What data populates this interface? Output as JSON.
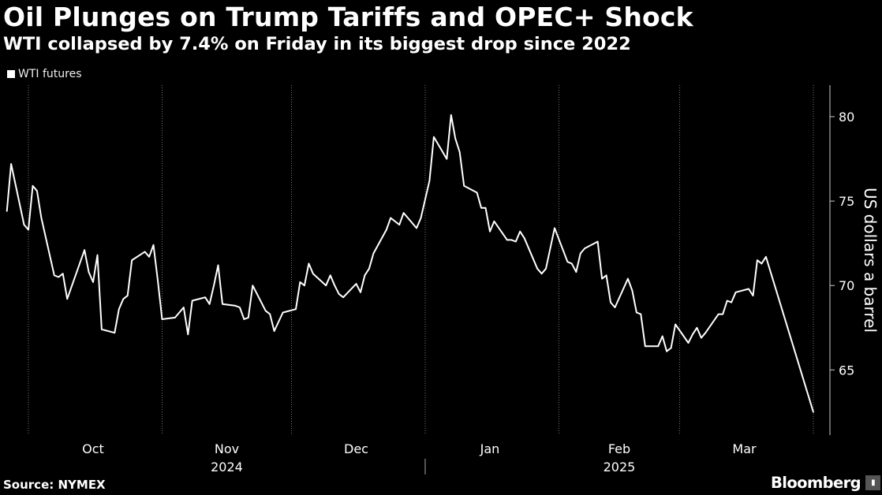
{
  "header": {
    "title": "Oil Plunges on Trump Tariffs and OPEC+ Shock",
    "subtitle": "WTI collapsed by 7.4% on Friday in its biggest drop since 2022"
  },
  "footer": {
    "source": "Source: NYMEX",
    "brand": "Bloomberg"
  },
  "colors": {
    "background": "#000000",
    "line": "#ffffff",
    "grid": "#888888"
  },
  "chart_data": {
    "type": "line",
    "title": "Oil Plunges on Trump Tariffs and OPEC+ Shock",
    "subtitle": "WTI collapsed by 7.4% on Friday in its biggest drop since 2022",
    "ylabel": "US dollars a barrel",
    "xlabel": "",
    "ylim": [
      61,
      82
    ],
    "yticks": [
      65,
      70,
      75,
      80
    ],
    "grid": "vertical dotted at month starts",
    "legend": "top-left",
    "months": [
      "Oct",
      "Nov",
      "Dec",
      "Jan",
      "Feb",
      "Mar"
    ],
    "years": [
      "2024",
      "2025"
    ],
    "series": [
      {
        "name": "WTI futures",
        "points": [
          [
            "2024-09-26",
            74.4
          ],
          [
            "2024-09-27",
            77.2
          ],
          [
            "2024-09-30",
            73.6
          ],
          [
            "2024-10-01",
            73.3
          ],
          [
            "2024-10-02",
            75.9
          ],
          [
            "2024-10-03",
            75.6
          ],
          [
            "2024-10-04",
            74.0
          ],
          [
            "2024-10-07",
            70.6
          ],
          [
            "2024-10-08",
            70.5
          ],
          [
            "2024-10-09",
            70.7
          ],
          [
            "2024-10-10",
            69.2
          ],
          [
            "2024-10-14",
            72.1
          ],
          [
            "2024-10-15",
            70.8
          ],
          [
            "2024-10-16",
            70.2
          ],
          [
            "2024-10-17",
            71.8
          ],
          [
            "2024-10-18",
            67.4
          ],
          [
            "2024-10-21",
            67.2
          ],
          [
            "2024-10-22",
            68.6
          ],
          [
            "2024-10-23",
            69.2
          ],
          [
            "2024-10-24",
            69.4
          ],
          [
            "2024-10-25",
            71.5
          ],
          [
            "2024-10-28",
            72.0
          ],
          [
            "2024-10-29",
            71.7
          ],
          [
            "2024-10-30",
            72.4
          ],
          [
            "2024-10-31",
            70.3
          ],
          [
            "2024-11-01",
            68.0
          ],
          [
            "2024-11-04",
            68.1
          ],
          [
            "2024-11-05",
            68.4
          ],
          [
            "2024-11-06",
            68.7
          ],
          [
            "2024-11-07",
            67.1
          ],
          [
            "2024-11-08",
            69.1
          ],
          [
            "2024-11-11",
            69.3
          ],
          [
            "2024-11-12",
            68.9
          ],
          [
            "2024-11-13",
            70.0
          ],
          [
            "2024-11-14",
            71.2
          ],
          [
            "2024-11-15",
            68.9
          ],
          [
            "2024-11-18",
            68.8
          ],
          [
            "2024-11-19",
            68.7
          ],
          [
            "2024-11-20",
            68.0
          ],
          [
            "2024-11-21",
            68.1
          ],
          [
            "2024-11-22",
            70.0
          ],
          [
            "2024-11-25",
            68.5
          ],
          [
            "2024-11-26",
            68.3
          ],
          [
            "2024-11-27",
            67.3
          ],
          [
            "2024-11-29",
            68.4
          ],
          [
            "2024-12-02",
            68.6
          ],
          [
            "2024-12-03",
            70.2
          ],
          [
            "2024-12-04",
            70.0
          ],
          [
            "2024-12-05",
            71.3
          ],
          [
            "2024-12-06",
            70.7
          ],
          [
            "2024-12-09",
            70.0
          ],
          [
            "2024-12-10",
            70.6
          ],
          [
            "2024-12-11",
            70.0
          ],
          [
            "2024-12-12",
            69.5
          ],
          [
            "2024-12-13",
            69.3
          ],
          [
            "2024-12-16",
            70.1
          ],
          [
            "2024-12-17",
            69.6
          ],
          [
            "2024-12-18",
            70.6
          ],
          [
            "2024-12-19",
            71.0
          ],
          [
            "2024-12-20",
            71.9
          ],
          [
            "2024-12-23",
            73.3
          ],
          [
            "2024-12-24",
            74.0
          ],
          [
            "2024-12-26",
            73.6
          ],
          [
            "2024-12-27",
            74.3
          ],
          [
            "2024-12-30",
            73.4
          ],
          [
            "2024-12-31",
            74.0
          ],
          [
            "2025-01-02",
            76.2
          ],
          [
            "2025-01-03",
            78.8
          ],
          [
            "2025-01-06",
            77.5
          ],
          [
            "2025-01-07",
            80.1
          ],
          [
            "2025-01-08",
            78.7
          ],
          [
            "2025-01-09",
            77.9
          ],
          [
            "2025-01-10",
            75.9
          ],
          [
            "2025-01-13",
            75.5
          ],
          [
            "2025-01-14",
            74.6
          ],
          [
            "2025-01-15",
            74.6
          ],
          [
            "2025-01-16",
            73.2
          ],
          [
            "2025-01-17",
            73.8
          ],
          [
            "2025-01-20",
            72.7
          ],
          [
            "2025-01-21",
            72.7
          ],
          [
            "2025-01-22",
            72.6
          ],
          [
            "2025-01-23",
            73.2
          ],
          [
            "2025-01-24",
            72.8
          ],
          [
            "2025-01-27",
            71.0
          ],
          [
            "2025-01-28",
            70.7
          ],
          [
            "2025-01-29",
            71.0
          ],
          [
            "2025-01-30",
            72.2
          ],
          [
            "2025-01-31",
            73.4
          ],
          [
            "2025-02-03",
            71.4
          ],
          [
            "2025-02-04",
            71.3
          ],
          [
            "2025-02-05",
            70.8
          ],
          [
            "2025-02-06",
            71.9
          ],
          [
            "2025-02-07",
            72.2
          ],
          [
            "2025-02-10",
            72.6
          ],
          [
            "2025-02-11",
            70.4
          ],
          [
            "2025-02-12",
            70.6
          ],
          [
            "2025-02-13",
            69.0
          ],
          [
            "2025-02-14",
            68.7
          ],
          [
            "2025-02-17",
            70.4
          ],
          [
            "2025-02-18",
            69.7
          ],
          [
            "2025-02-19",
            68.4
          ],
          [
            "2025-02-20",
            68.3
          ],
          [
            "2025-02-21",
            66.4
          ],
          [
            "2025-02-24",
            66.4
          ],
          [
            "2025-02-25",
            67.0
          ],
          [
            "2025-02-26",
            66.1
          ],
          [
            "2025-02-27",
            66.3
          ],
          [
            "2025-02-28",
            67.7
          ],
          [
            "2025-03-03",
            66.6
          ],
          [
            "2025-03-04",
            67.1
          ],
          [
            "2025-03-05",
            67.5
          ],
          [
            "2025-03-06",
            66.9
          ],
          [
            "2025-03-07",
            67.2
          ],
          [
            "2025-03-10",
            68.3
          ],
          [
            "2025-03-11",
            68.3
          ],
          [
            "2025-03-12",
            69.1
          ],
          [
            "2025-03-13",
            69.0
          ],
          [
            "2025-03-14",
            69.6
          ],
          [
            "2025-03-17",
            69.8
          ],
          [
            "2025-03-18",
            69.4
          ],
          [
            "2025-03-19",
            71.5
          ],
          [
            "2025-03-20",
            71.3
          ],
          [
            "2025-03-21",
            71.7
          ],
          [
            "2025-04-01",
            62.5
          ]
        ]
      }
    ]
  }
}
